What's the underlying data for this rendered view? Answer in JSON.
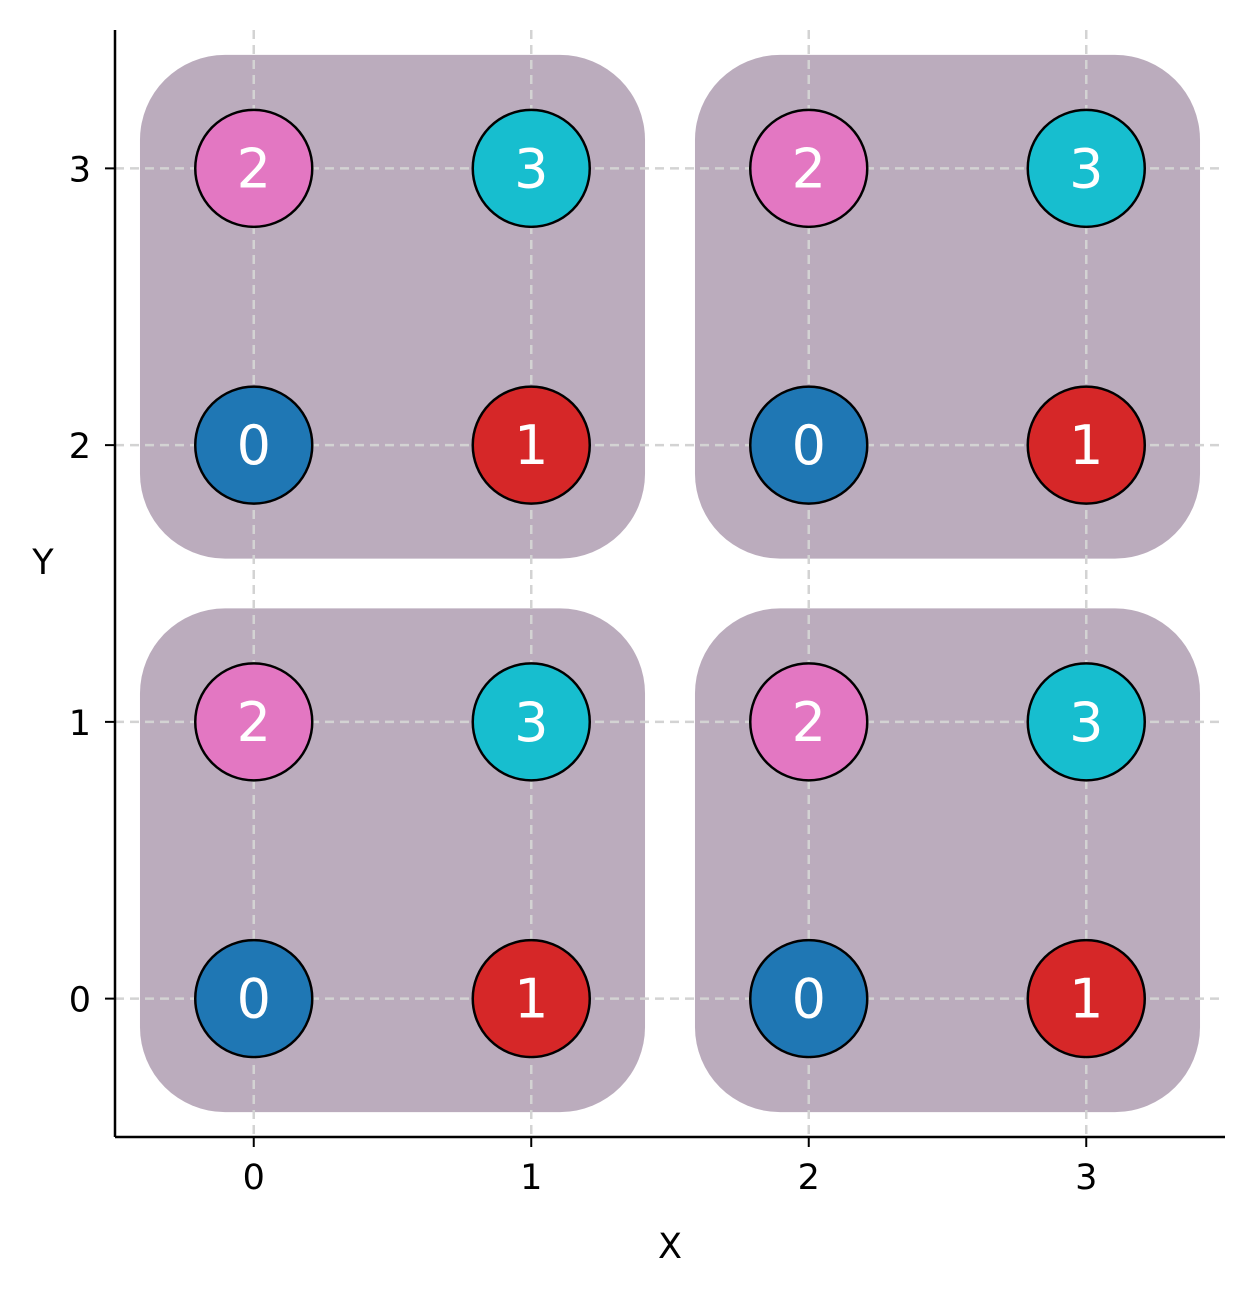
{
  "chart_data": {
    "type": "scatter",
    "title": "",
    "xlabel": "X",
    "ylabel": "Y",
    "xlim": [
      -0.5,
      3.5
    ],
    "ylim": [
      -0.5,
      3.5
    ],
    "xticks": [
      "0",
      "1",
      "2",
      "3"
    ],
    "yticks": [
      "0",
      "1",
      "2",
      "3"
    ],
    "grid": true,
    "grid_style": "dashed",
    "group_color": "#bbacbd",
    "groups": [
      {
        "x_range": [
          0,
          1
        ],
        "y_range": [
          0,
          1
        ]
      },
      {
        "x_range": [
          2,
          3
        ],
        "y_range": [
          0,
          1
        ]
      },
      {
        "x_range": [
          0,
          1
        ],
        "y_range": [
          2,
          3
        ]
      },
      {
        "x_range": [
          2,
          3
        ],
        "y_range": [
          2,
          3
        ]
      }
    ],
    "points": [
      {
        "x": 0,
        "y": 0,
        "label": "0",
        "color": "#1f77b4"
      },
      {
        "x": 1,
        "y": 0,
        "label": "1",
        "color": "#d62728"
      },
      {
        "x": 2,
        "y": 0,
        "label": "0",
        "color": "#1f77b4"
      },
      {
        "x": 3,
        "y": 0,
        "label": "1",
        "color": "#d62728"
      },
      {
        "x": 0,
        "y": 1,
        "label": "2",
        "color": "#e377c2"
      },
      {
        "x": 1,
        "y": 1,
        "label": "3",
        "color": "#17becf"
      },
      {
        "x": 2,
        "y": 1,
        "label": "2",
        "color": "#e377c2"
      },
      {
        "x": 3,
        "y": 1,
        "label": "3",
        "color": "#17becf"
      },
      {
        "x": 0,
        "y": 2,
        "label": "0",
        "color": "#1f77b4"
      },
      {
        "x": 1,
        "y": 2,
        "label": "1",
        "color": "#d62728"
      },
      {
        "x": 2,
        "y": 2,
        "label": "0",
        "color": "#1f77b4"
      },
      {
        "x": 3,
        "y": 2,
        "label": "1",
        "color": "#d62728"
      },
      {
        "x": 0,
        "y": 3,
        "label": "2",
        "color": "#e377c2"
      },
      {
        "x": 1,
        "y": 3,
        "label": "3",
        "color": "#17becf"
      },
      {
        "x": 2,
        "y": 3,
        "label": "2",
        "color": "#e377c2"
      },
      {
        "x": 3,
        "y": 3,
        "label": "3",
        "color": "#17becf"
      }
    ]
  }
}
